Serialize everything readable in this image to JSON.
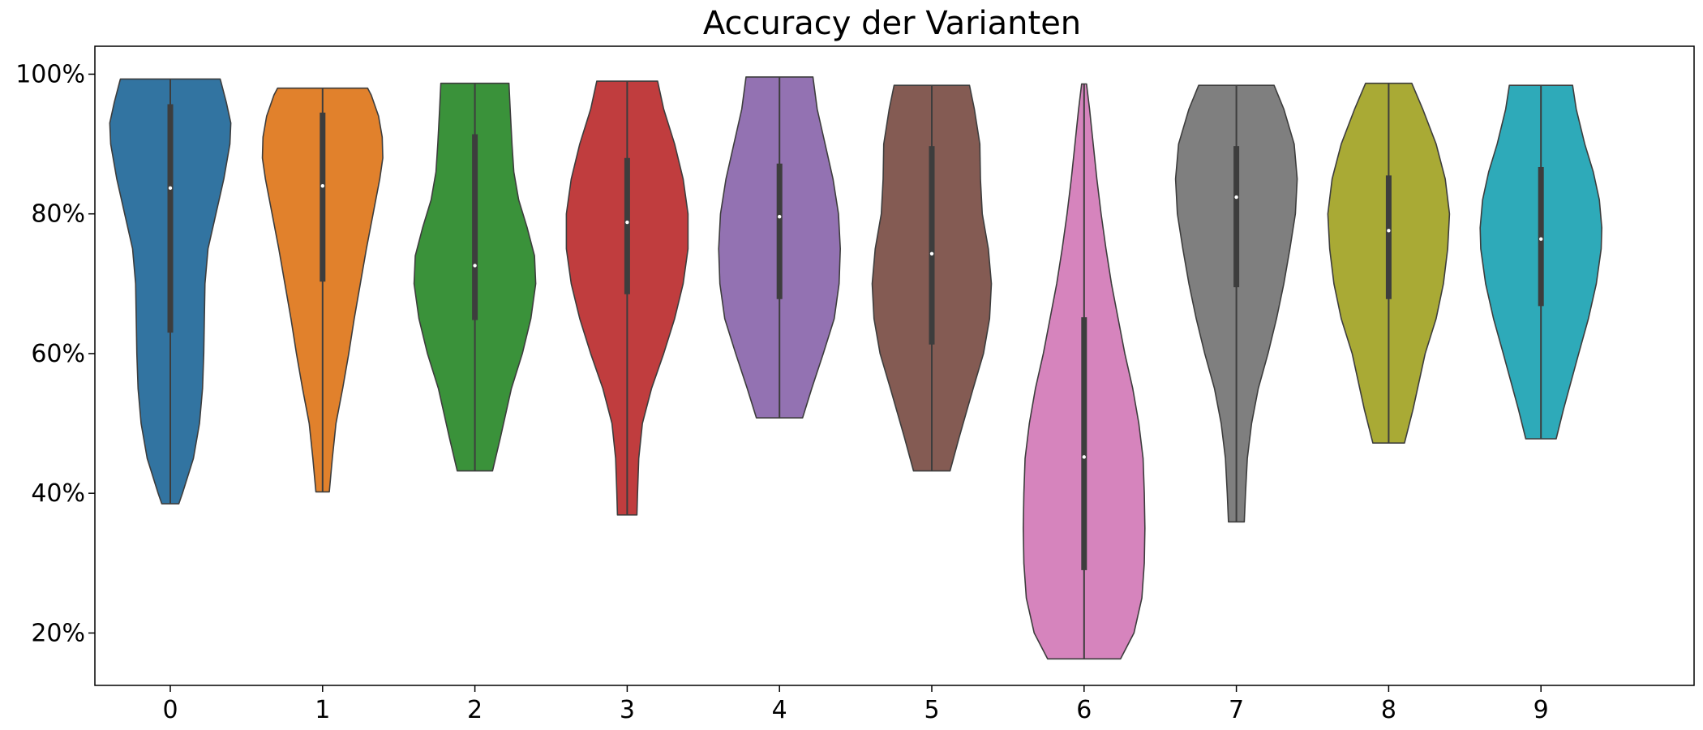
{
  "chart_data": {
    "type": "violin",
    "title": "Accuracy der Varianten",
    "xlabel": "",
    "ylabel": "",
    "categories": [
      "0",
      "1",
      "2",
      "3",
      "4",
      "5",
      "6",
      "7",
      "8",
      "9"
    ],
    "y_tick_labels": [
      "20%",
      "40%",
      "60%",
      "80%",
      "100%"
    ],
    "y_ticks": [
      0.2,
      0.4,
      0.6,
      0.8,
      1.0
    ],
    "ylim": [
      0.125,
      1.04
    ],
    "grid": false,
    "violins": [
      {
        "category": "0",
        "color": "#3274a1",
        "min": 0.385,
        "max": 0.993,
        "q1": 0.63,
        "median": 0.837,
        "q3": 0.957,
        "profile": [
          [
            0.385,
            0.14
          ],
          [
            0.4,
            0.2
          ],
          [
            0.45,
            0.38
          ],
          [
            0.5,
            0.48
          ],
          [
            0.55,
            0.53
          ],
          [
            0.6,
            0.55
          ],
          [
            0.65,
            0.56
          ],
          [
            0.7,
            0.57
          ],
          [
            0.75,
            0.62
          ],
          [
            0.8,
            0.75
          ],
          [
            0.85,
            0.88
          ],
          [
            0.9,
            0.98
          ],
          [
            0.93,
            0.995
          ],
          [
            0.96,
            0.92
          ],
          [
            0.99,
            0.83
          ],
          [
            0.993,
            0.82
          ]
        ]
      },
      {
        "category": "1",
        "color": "#e1812c",
        "min": 0.402,
        "max": 0.98,
        "q1": 0.703,
        "median": 0.84,
        "q3": 0.945,
        "profile": [
          [
            0.402,
            0.11
          ],
          [
            0.45,
            0.16
          ],
          [
            0.5,
            0.22
          ],
          [
            0.55,
            0.33
          ],
          [
            0.6,
            0.43
          ],
          [
            0.65,
            0.52
          ],
          [
            0.7,
            0.62
          ],
          [
            0.75,
            0.72
          ],
          [
            0.8,
            0.83
          ],
          [
            0.85,
            0.94
          ],
          [
            0.88,
            0.99
          ],
          [
            0.91,
            0.98
          ],
          [
            0.94,
            0.92
          ],
          [
            0.97,
            0.8
          ],
          [
            0.98,
            0.74
          ]
        ]
      },
      {
        "category": "2",
        "color": "#3a923a",
        "min": 0.432,
        "max": 0.987,
        "q1": 0.648,
        "median": 0.726,
        "q3": 0.914,
        "profile": [
          [
            0.432,
            0.29
          ],
          [
            0.48,
            0.42
          ],
          [
            0.55,
            0.6
          ],
          [
            0.6,
            0.78
          ],
          [
            0.65,
            0.92
          ],
          [
            0.7,
            1.0
          ],
          [
            0.74,
            0.98
          ],
          [
            0.78,
            0.86
          ],
          [
            0.82,
            0.72
          ],
          [
            0.86,
            0.64
          ],
          [
            0.9,
            0.61
          ],
          [
            0.95,
            0.58
          ],
          [
            0.987,
            0.56
          ]
        ]
      },
      {
        "category": "3",
        "color": "#c03d3e",
        "min": 0.369,
        "max": 0.99,
        "q1": 0.685,
        "median": 0.788,
        "q3": 0.88,
        "profile": [
          [
            0.369,
            0.16
          ],
          [
            0.4,
            0.17
          ],
          [
            0.45,
            0.19
          ],
          [
            0.5,
            0.25
          ],
          [
            0.55,
            0.4
          ],
          [
            0.6,
            0.6
          ],
          [
            0.65,
            0.78
          ],
          [
            0.7,
            0.92
          ],
          [
            0.75,
            1.0
          ],
          [
            0.8,
            1.0
          ],
          [
            0.85,
            0.92
          ],
          [
            0.9,
            0.78
          ],
          [
            0.95,
            0.6
          ],
          [
            0.99,
            0.5
          ]
        ]
      },
      {
        "category": "4",
        "color": "#9372b2",
        "min": 0.508,
        "max": 0.996,
        "q1": 0.678,
        "median": 0.796,
        "q3": 0.872,
        "profile": [
          [
            0.508,
            0.38
          ],
          [
            0.55,
            0.53
          ],
          [
            0.6,
            0.72
          ],
          [
            0.65,
            0.9
          ],
          [
            0.7,
            0.98
          ],
          [
            0.75,
            1.0
          ],
          [
            0.8,
            0.97
          ],
          [
            0.85,
            0.88
          ],
          [
            0.9,
            0.75
          ],
          [
            0.95,
            0.62
          ],
          [
            0.996,
            0.55
          ]
        ]
      },
      {
        "category": "5",
        "color": "#845b53",
        "min": 0.432,
        "max": 0.984,
        "q1": 0.613,
        "median": 0.743,
        "q3": 0.897,
        "profile": [
          [
            0.432,
            0.3
          ],
          [
            0.48,
            0.45
          ],
          [
            0.55,
            0.68
          ],
          [
            0.6,
            0.85
          ],
          [
            0.65,
            0.95
          ],
          [
            0.7,
            0.98
          ],
          [
            0.75,
            0.93
          ],
          [
            0.8,
            0.83
          ],
          [
            0.85,
            0.8
          ],
          [
            0.9,
            0.79
          ],
          [
            0.95,
            0.7
          ],
          [
            0.984,
            0.62
          ]
        ]
      },
      {
        "category": "6",
        "color": "#d684bd",
        "min": 0.163,
        "max": 0.986,
        "q1": 0.29,
        "median": 0.452,
        "q3": 0.652,
        "profile": [
          [
            0.163,
            0.6
          ],
          [
            0.2,
            0.82
          ],
          [
            0.25,
            0.95
          ],
          [
            0.3,
            0.99
          ],
          [
            0.35,
            1.0
          ],
          [
            0.4,
            0.99
          ],
          [
            0.45,
            0.97
          ],
          [
            0.5,
            0.9
          ],
          [
            0.55,
            0.8
          ],
          [
            0.6,
            0.67
          ],
          [
            0.65,
            0.56
          ],
          [
            0.7,
            0.45
          ],
          [
            0.75,
            0.36
          ],
          [
            0.8,
            0.28
          ],
          [
            0.85,
            0.21
          ],
          [
            0.9,
            0.15
          ],
          [
            0.95,
            0.09
          ],
          [
            0.986,
            0.04
          ]
        ]
      },
      {
        "category": "7",
        "color": "#7f7f7f",
        "min": 0.359,
        "max": 0.984,
        "q1": 0.695,
        "median": 0.824,
        "q3": 0.897,
        "profile": [
          [
            0.359,
            0.13
          ],
          [
            0.4,
            0.15
          ],
          [
            0.45,
            0.18
          ],
          [
            0.5,
            0.25
          ],
          [
            0.55,
            0.36
          ],
          [
            0.6,
            0.52
          ],
          [
            0.65,
            0.66
          ],
          [
            0.7,
            0.78
          ],
          [
            0.75,
            0.88
          ],
          [
            0.8,
            0.97
          ],
          [
            0.85,
            1.0
          ],
          [
            0.9,
            0.95
          ],
          [
            0.95,
            0.78
          ],
          [
            0.984,
            0.62
          ]
        ]
      },
      {
        "category": "8",
        "color": "#a9aa35",
        "min": 0.472,
        "max": 0.987,
        "q1": 0.678,
        "median": 0.776,
        "q3": 0.855,
        "profile": [
          [
            0.472,
            0.26
          ],
          [
            0.52,
            0.4
          ],
          [
            0.6,
            0.6
          ],
          [
            0.65,
            0.78
          ],
          [
            0.7,
            0.9
          ],
          [
            0.75,
            0.97
          ],
          [
            0.8,
            1.0
          ],
          [
            0.85,
            0.93
          ],
          [
            0.9,
            0.78
          ],
          [
            0.95,
            0.56
          ],
          [
            0.987,
            0.38
          ]
        ]
      },
      {
        "category": "9",
        "color": "#2eaab9",
        "min": 0.478,
        "max": 0.984,
        "q1": 0.668,
        "median": 0.764,
        "q3": 0.867,
        "profile": [
          [
            0.478,
            0.25
          ],
          [
            0.52,
            0.37
          ],
          [
            0.6,
            0.62
          ],
          [
            0.65,
            0.78
          ],
          [
            0.7,
            0.91
          ],
          [
            0.75,
            0.99
          ],
          [
            0.78,
            1.0
          ],
          [
            0.82,
            0.96
          ],
          [
            0.86,
            0.86
          ],
          [
            0.9,
            0.72
          ],
          [
            0.95,
            0.58
          ],
          [
            0.984,
            0.52
          ]
        ]
      }
    ]
  }
}
